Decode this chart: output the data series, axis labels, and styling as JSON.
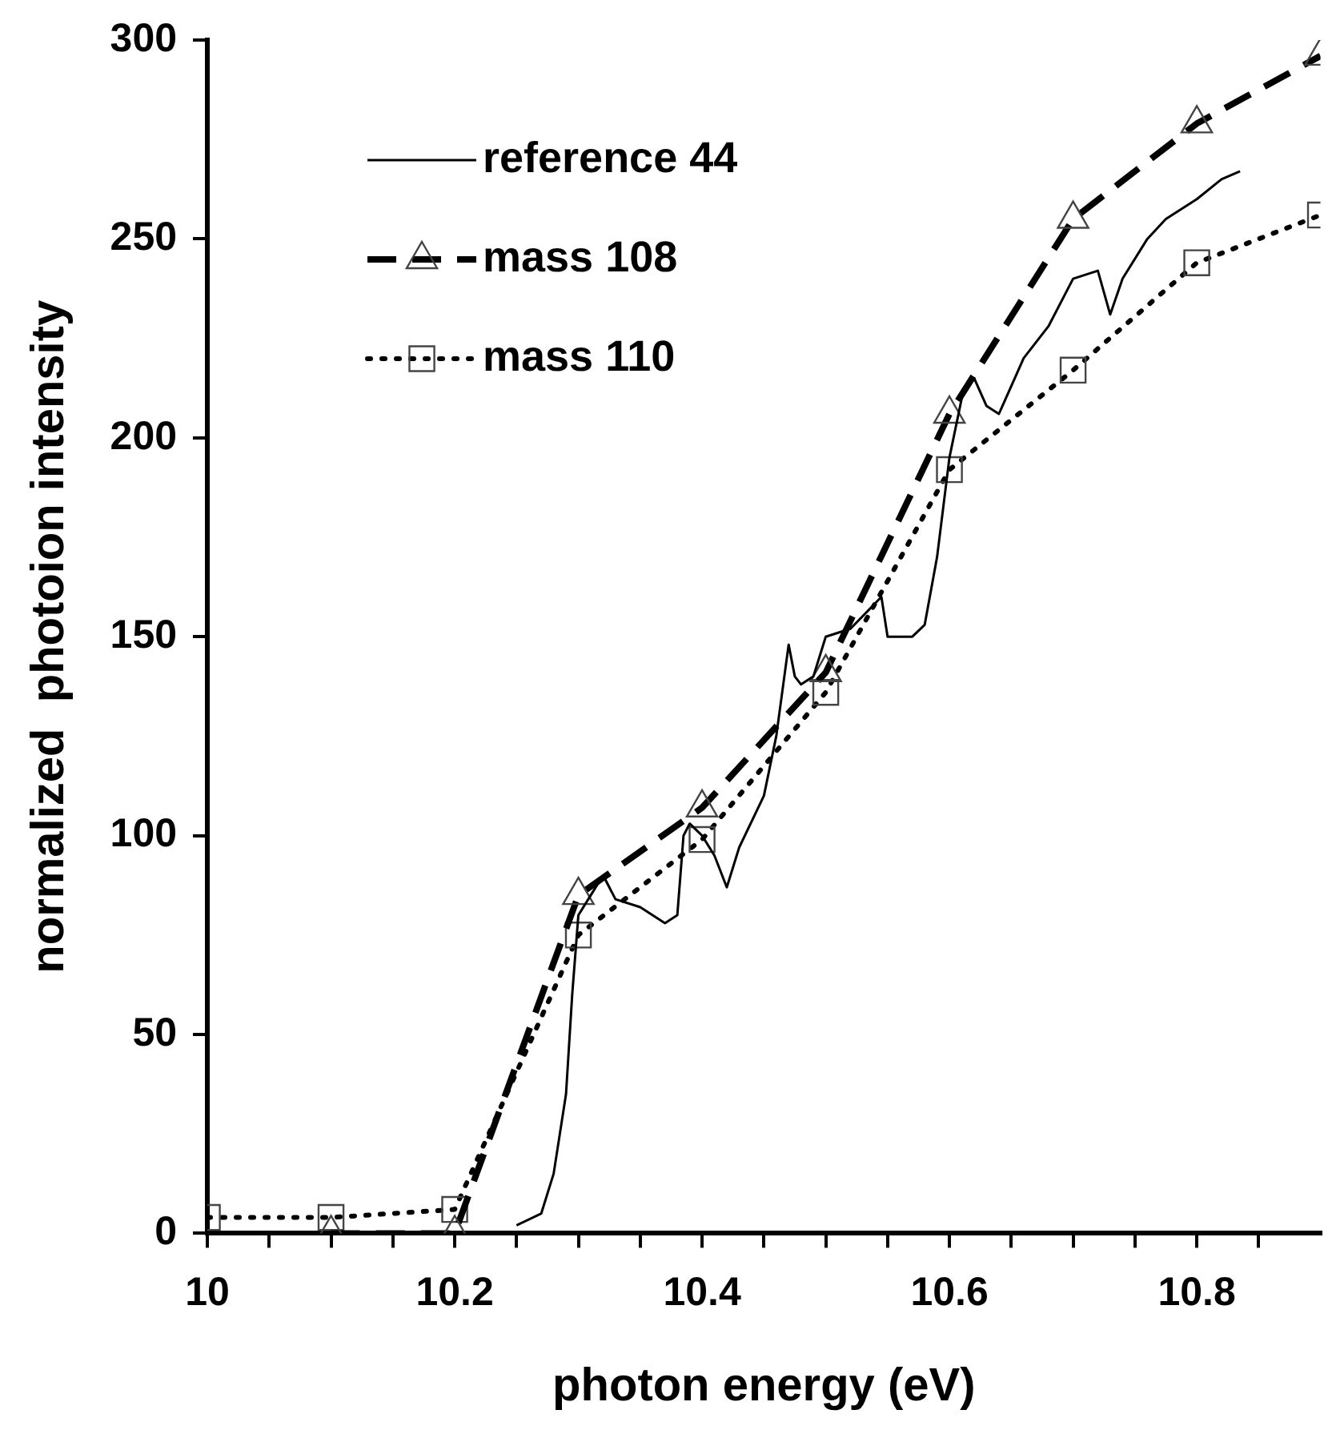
{
  "chart_data": {
    "type": "line",
    "xlabel": "photon energy (eV)",
    "ylabel": "normalized  photoion intensity",
    "xlim": [
      10,
      10.9
    ],
    "ylim": [
      0,
      300
    ],
    "xticks": [
      10,
      {
        "value": 10.05,
        "label": null
      },
      {
        "value": 10.1,
        "label": null
      },
      {
        "value": 10.15,
        "label": null
      },
      10.2,
      {
        "value": 10.25,
        "label": null
      },
      {
        "value": 10.3,
        "label": null
      },
      {
        "value": 10.35,
        "label": null
      },
      10.4,
      {
        "value": 10.45,
        "label": null
      },
      {
        "value": 10.5,
        "label": null
      },
      {
        "value": 10.55,
        "label": null
      },
      10.6,
      {
        "value": 10.65,
        "label": null
      },
      {
        "value": 10.7,
        "label": null
      },
      {
        "value": 10.75,
        "label": null
      },
      10.8,
      {
        "value": 10.85,
        "label": null
      }
    ],
    "yticks": [
      0,
      50,
      100,
      150,
      200,
      250,
      300
    ],
    "grid": false,
    "legend": "top left",
    "series": [
      {
        "name": "reference 44",
        "color": "#000000",
        "marker": "none",
        "line_style": "solid",
        "x": [
          10.25,
          10.27,
          10.28,
          10.29,
          10.295,
          10.3,
          10.31,
          10.32,
          10.33,
          10.35,
          10.37,
          10.38,
          10.385,
          10.39,
          10.4,
          10.41,
          10.42,
          10.43,
          10.45,
          10.46,
          10.47,
          10.475,
          10.48,
          10.49,
          10.5,
          10.52,
          10.545,
          10.55,
          10.57,
          10.58,
          10.59,
          10.6,
          10.61,
          10.62,
          10.63,
          10.64,
          10.66,
          10.68,
          10.7,
          10.72,
          10.73,
          10.74,
          10.76,
          10.775,
          10.8,
          10.82,
          10.835
        ],
        "values": [
          2,
          5,
          15,
          35,
          60,
          80,
          85,
          90,
          84,
          82,
          78,
          80,
          100,
          103,
          100,
          95,
          87,
          97,
          110,
          125,
          148,
          140,
          138,
          140,
          150,
          152,
          160,
          150,
          150,
          153,
          170,
          195,
          210,
          215,
          208,
          206,
          220,
          228,
          240,
          242,
          231,
          240,
          250,
          255,
          260,
          265,
          267
        ]
      },
      {
        "name": "mass 108",
        "color": "#000000",
        "marker": "triangle",
        "line_style": "dashed",
        "x": [
          10.1,
          10.2,
          10.3,
          10.4,
          10.5,
          10.6,
          10.7,
          10.8,
          10.9
        ],
        "values": [
          0,
          0,
          85,
          107,
          141,
          206,
          255,
          279,
          296
        ]
      },
      {
        "name": "mass 110",
        "color": "#000000",
        "marker": "square",
        "line_style": "dotted",
        "x": [
          10,
          10.1,
          10.2,
          10.3,
          10.4,
          10.5,
          10.6,
          10.7,
          10.8,
          10.9
        ],
        "values": [
          4,
          4,
          6,
          75,
          99,
          136,
          192,
          217,
          244,
          256
        ]
      }
    ]
  }
}
